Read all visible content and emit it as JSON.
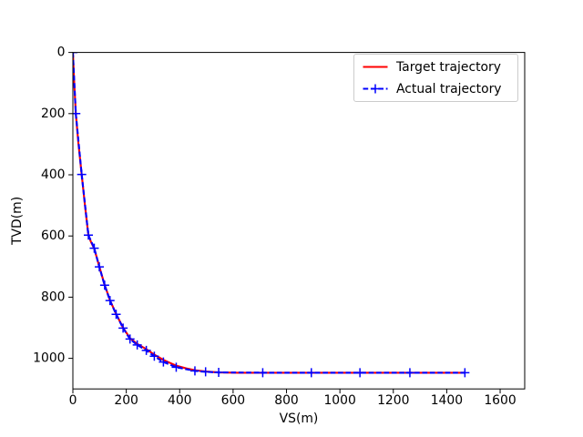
{
  "window": {
    "background": "#ffffff"
  },
  "chart_data": {
    "type": "line",
    "title": "",
    "xlabel": "VS(m)",
    "ylabel": "TVD(m)",
    "xlim": [
      0,
      1692
    ],
    "ylim": [
      0,
      1100
    ],
    "y_axis_inverted": true,
    "grid": false,
    "x_ticks": [
      0,
      200,
      400,
      600,
      800,
      1000,
      1200,
      1400,
      1600
    ],
    "y_ticks": [
      0,
      200,
      400,
      600,
      800,
      1000
    ],
    "legend": {
      "location": "upper right",
      "framed": true
    },
    "series": [
      {
        "name": "Target trajectory",
        "color": "#ff0000",
        "linestyle": "solid",
        "marker": "none",
        "points": [
          [
            0,
            0
          ],
          [
            4,
            80
          ],
          [
            11,
            200
          ],
          [
            21,
            300
          ],
          [
            33,
            399
          ],
          [
            45,
            498
          ],
          [
            58,
            597
          ],
          [
            68,
            620
          ],
          [
            80,
            641
          ],
          [
            99,
            700
          ],
          [
            119,
            760
          ],
          [
            139,
            810
          ],
          [
            162,
            855
          ],
          [
            188,
            900
          ],
          [
            214,
            934
          ],
          [
            241,
            953
          ],
          [
            275,
            970
          ],
          [
            305,
            988
          ],
          [
            339,
            1005
          ],
          [
            387,
            1024
          ],
          [
            425,
            1033
          ],
          [
            457,
            1039
          ],
          [
            497,
            1043
          ],
          [
            546,
            1046
          ],
          [
            620,
            1047
          ],
          [
            1470,
            1047
          ]
        ]
      },
      {
        "name": "Actual trajectory",
        "color": "#0000ff",
        "linestyle": "dashed",
        "marker": "+",
        "points": [
          [
            0,
            0
          ],
          [
            11,
            200
          ],
          [
            33,
            399
          ],
          [
            58,
            597
          ],
          [
            80,
            640
          ],
          [
            99,
            701
          ],
          [
            119,
            761
          ],
          [
            139,
            811
          ],
          [
            162,
            856
          ],
          [
            188,
            901
          ],
          [
            214,
            937
          ],
          [
            241,
            956
          ],
          [
            275,
            974
          ],
          [
            305,
            993
          ],
          [
            339,
            1012
          ],
          [
            387,
            1029
          ],
          [
            457,
            1041
          ],
          [
            497,
            1044
          ],
          [
            546,
            1046
          ],
          [
            711,
            1047
          ],
          [
            893,
            1047
          ],
          [
            1075,
            1047
          ],
          [
            1262,
            1047
          ],
          [
            1468,
            1047
          ]
        ]
      }
    ]
  }
}
